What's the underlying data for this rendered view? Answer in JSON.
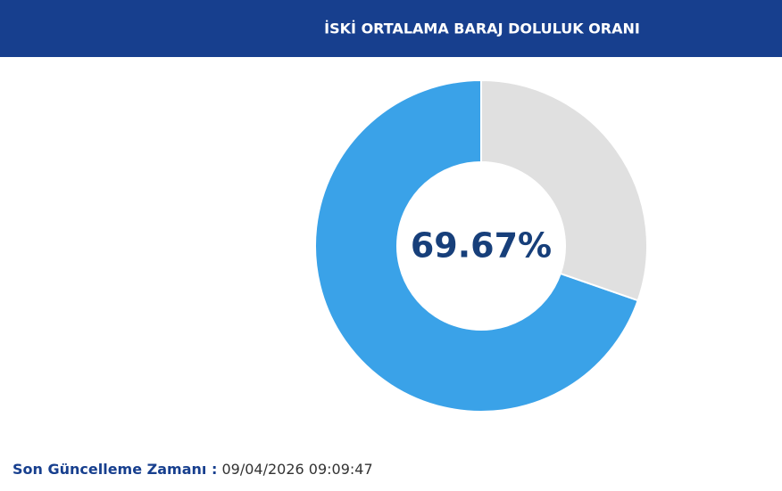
{
  "chart_data": {
    "type": "donut",
    "title": "İSKİ ORTALAMA BARAJ DOLULUK ORANI",
    "values": [
      69.67,
      30.33
    ],
    "value_labels": [
      "69.67%",
      null
    ],
    "colors": [
      "#3aa2e8",
      "#e0e0e0"
    ],
    "direction": "counterclockwise"
  },
  "footer": {
    "label": "Son Güncelleme Zamanı :",
    "timestamp": "09/04/2026 09:09:47"
  }
}
